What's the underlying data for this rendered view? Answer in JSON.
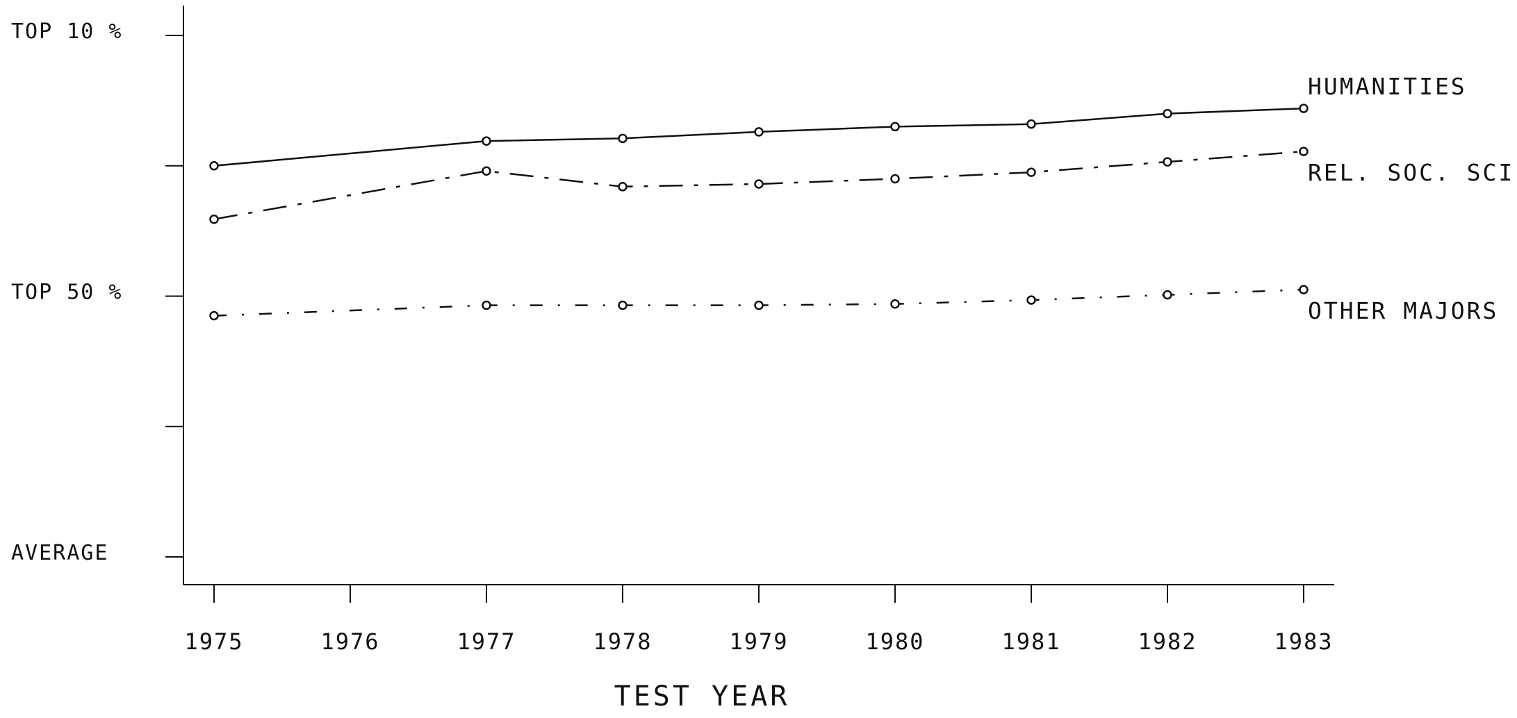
{
  "chart_data": {
    "type": "line",
    "title": "",
    "xlabel": "TEST YEAR",
    "ylabel": "",
    "x": [
      1975,
      1977,
      1978,
      1979,
      1980,
      1981,
      1982,
      1983
    ],
    "x_tick_labels": [
      "1975",
      "1976",
      "1977",
      "1978",
      "1979",
      "1980",
      "1981",
      "1982",
      "1983"
    ],
    "x_ticks": [
      1975,
      1976,
      1977,
      1978,
      1979,
      1980,
      1981,
      1982,
      1983
    ],
    "xlim": [
      1975,
      1983
    ],
    "y_scale_note": "",
    "ylim": [
      0,
      4
    ],
    "y_ticks": [
      {
        "value": 0,
        "label": "AVERAGE"
      },
      {
        "value": 1,
        "label": ""
      },
      {
        "value": 2,
        "label": "TOP 50 %"
      },
      {
        "value": 3,
        "label": ""
      },
      {
        "value": 4,
        "label": "TOP 10 %"
      }
    ],
    "grid": false,
    "legend": "labels at line ends",
    "series": [
      {
        "name": "HUMANITIES",
        "line_style": "solid",
        "values": [
          3.0,
          3.19,
          3.21,
          3.26,
          3.3,
          3.32,
          3.4,
          3.44
        ]
      },
      {
        "name": "REL. SOC. SCI.",
        "line_style": "dash-dot",
        "values": [
          2.59,
          2.96,
          2.84,
          2.86,
          2.9,
          2.95,
          3.03,
          3.11
        ]
      },
      {
        "name": "OTHER MAJORS",
        "line_style": "dotted-dash",
        "values": [
          1.85,
          1.93,
          1.93,
          1.93,
          1.94,
          1.97,
          2.01,
          2.05
        ]
      }
    ]
  }
}
